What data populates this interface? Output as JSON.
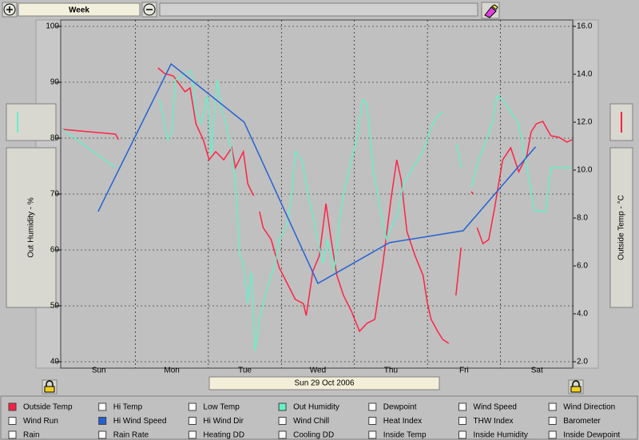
{
  "toolbar": {
    "range": "Week"
  },
  "chart_data": {
    "type": "line",
    "ylabel": "Out Humidity - %",
    "y2label": "Outside Temp - °C",
    "xlabel": "Sun 29 Oct 2006",
    "xlim": [
      0,
      7
    ],
    "xticks": [
      {
        "value": 0.5,
        "label": "Sun"
      },
      {
        "value": 1.5,
        "label": "Mon"
      },
      {
        "value": 2.5,
        "label": "Tue"
      },
      {
        "value": 3.5,
        "label": "Wed"
      },
      {
        "value": 4.5,
        "label": "Thu"
      },
      {
        "value": 5.5,
        "label": "Fri"
      },
      {
        "value": 6.5,
        "label": "Sat"
      }
    ],
    "ylim": [
      40,
      100
    ],
    "yticks": [
      40,
      50,
      60,
      70,
      80,
      90,
      100
    ],
    "y2lim": [
      2,
      16
    ],
    "y2ticks": [
      {
        "value": 2,
        "label": "2.0"
      },
      {
        "value": 4,
        "label": "4.0"
      },
      {
        "value": 6,
        "label": "6.0"
      },
      {
        "value": 8,
        "label": "8.0"
      },
      {
        "value": 10,
        "label": "10.0"
      },
      {
        "value": 12,
        "label": "12.0"
      },
      {
        "value": 14,
        "label": "14.0"
      },
      {
        "value": 16,
        "label": "16.0"
      }
    ],
    "grid": true,
    "series": [
      {
        "name": "Outside Temp",
        "color": "#ff2244",
        "axis": "y2",
        "x": [
          0.0,
          0.73,
          0.77,
          null,
          1.31,
          1.4,
          1.52,
          1.68,
          1.75,
          1.83,
          1.93,
          2.01,
          2.1,
          2.21,
          2.32,
          2.37,
          2.48,
          2.54,
          2.62,
          null,
          2.7,
          2.75,
          2.86,
          2.97,
          3.08,
          3.19,
          3.3,
          3.34,
          3.43,
          3.52,
          3.61,
          3.68,
          3.76,
          3.85,
          3.96,
          4.07,
          4.17,
          4.28,
          4.39,
          4.5,
          4.58,
          4.64,
          4.72,
          4.83,
          4.94,
          5.0,
          5.05,
          5.14,
          5.21,
          5.29,
          null,
          5.39,
          5.46,
          null,
          5.6,
          5.63,
          null,
          5.68,
          5.76,
          5.84,
          5.92,
          6.03,
          6.14,
          6.25,
          6.36,
          6.42,
          6.49,
          6.58,
          6.69,
          6.8,
          6.91,
          6.98
        ],
        "values": [
          11.7,
          11.5,
          11.27,
          null,
          14.27,
          14.03,
          13.93,
          13.27,
          13.43,
          11.93,
          11.27,
          10.43,
          10.77,
          10.43,
          10.93,
          10.1,
          10.77,
          9.43,
          8.93,
          null,
          8.27,
          7.6,
          7.1,
          5.93,
          5.27,
          4.6,
          4.43,
          3.93,
          5.77,
          6.43,
          8.6,
          7.1,
          5.6,
          4.77,
          4.1,
          3.27,
          3.6,
          3.77,
          6.1,
          8.77,
          10.43,
          9.6,
          7.43,
          6.43,
          5.6,
          4.43,
          3.77,
          3.27,
          2.93,
          2.77,
          null,
          4.77,
          6.77,
          null,
          9.1,
          9.0,
          null,
          7.6,
          6.93,
          7.1,
          8.43,
          10.43,
          10.93,
          9.93,
          10.6,
          11.6,
          11.93,
          12.03,
          11.43,
          11.37,
          11.17,
          11.27
        ]
      },
      {
        "name": "Out Humidity",
        "color": "#66f0c8",
        "axis": "y",
        "x": [
          0.0,
          0.73,
          null,
          1.33,
          1.39,
          1.44,
          1.5,
          1.55,
          1.64,
          1.72,
          1.77,
          1.83,
          1.9,
          1.99,
          2.04,
          2.12,
          2.19,
          2.24,
          2.32,
          2.38,
          2.43,
          2.48,
          2.54,
          2.59,
          2.64,
          2.7,
          2.75,
          2.84,
          2.92,
          2.97,
          3.03,
          3.08,
          3.14,
          3.19,
          3.28,
          3.36,
          3.43,
          3.52,
          3.57,
          3.63,
          3.72,
          3.79,
          3.87,
          3.96,
          4.04,
          4.11,
          4.17,
          4.26,
          4.35,
          4.44,
          4.5,
          4.59,
          4.67,
          4.74,
          4.83,
          4.94,
          5.05,
          5.14,
          5.22,
          null,
          5.4,
          5.46,
          null,
          5.6,
          5.7,
          5.81,
          5.9,
          5.95,
          6.03,
          6.14,
          6.25,
          6.36,
          6.47,
          6.62,
          6.69,
          6.98
        ],
        "values": [
          81.6,
          74.7,
          null,
          86.9,
          83.3,
          79.7,
          81.1,
          90.4,
          91.1,
          91.9,
          91.9,
          84.7,
          82.6,
          87.6,
          76.9,
          90.4,
          84.7,
          82.6,
          77.6,
          70.4,
          59.0,
          57.6,
          50.4,
          56.1,
          41.9,
          47.6,
          50.4,
          54.7,
          57.6,
          61.9,
          63.3,
          64.7,
          69.7,
          77.6,
          76.1,
          70.4,
          66.1,
          60.4,
          57.6,
          61.9,
          56.1,
          64.7,
          71.1,
          76.1,
          80.4,
          86.9,
          86.1,
          74.0,
          67.6,
          61.9,
          64.0,
          66.1,
          71.9,
          73.3,
          75.4,
          77.6,
          81.9,
          84.0,
          84.7,
          null,
          79.0,
          74.7,
          null,
          71.1,
          76.1,
          79.7,
          83.3,
          87.6,
          86.9,
          84.7,
          82.6,
          74.7,
          66.9,
          66.9,
          74.7,
          74.7
        ]
      },
      {
        "name": "Hi Wind Speed",
        "color": "#2462d4",
        "axis": "y2",
        "x": [
          0.49,
          1.49,
          2.49,
          3.5,
          4.48,
          5.49,
          6.48
        ],
        "values": [
          8.27,
          14.43,
          12.0,
          5.27,
          6.97,
          7.47,
          10.97
        ]
      }
    ],
    "options": [
      "Hi Temp",
      "Low Temp",
      "Dewpoint",
      "Wind Speed",
      "Wind Direction",
      "Wind Run",
      "Hi Wind Dir",
      "Wind Chill",
      "Heat Index",
      "THW Index",
      "Barometer",
      "Rain",
      "Rain Rate",
      "Heating DD",
      "Cooling DD",
      "Inside Temp",
      "Inside Humidity",
      "Inside Dewpoint"
    ]
  }
}
